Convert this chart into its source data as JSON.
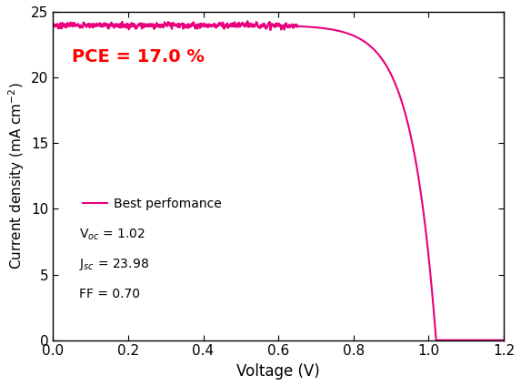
{
  "Voc": 1.02,
  "Jsc": 23.98,
  "FF": 0.7,
  "PCE": 17.0,
  "curve_color": "#E8007D",
  "pce_color": "#FF0000",
  "xlabel": "Voltage (V)",
  "ylabel": "Current density (mA cm$^{-2}$)",
  "xlim": [
    0,
    1.2
  ],
  "ylim": [
    0,
    25
  ],
  "xticks": [
    0.0,
    0.2,
    0.4,
    0.6,
    0.8,
    1.0,
    1.2
  ],
  "yticks": [
    0,
    5,
    10,
    15,
    20,
    25
  ],
  "legend_label": "Best perfomance",
  "annotation_Voc": "V$_{oc}$ = 1.02",
  "annotation_Jsc": "J$_{sc}$ = 23.98",
  "annotation_FF": "FF = 0.70",
  "pce_text": "PCE = 17.0 %",
  "noise_amplitude": 0.18,
  "noise_cutoff_V": 0.65,
  "n_ideality": 2.5,
  "figsize": [
    5.73,
    4.24
  ],
  "dpi": 100
}
